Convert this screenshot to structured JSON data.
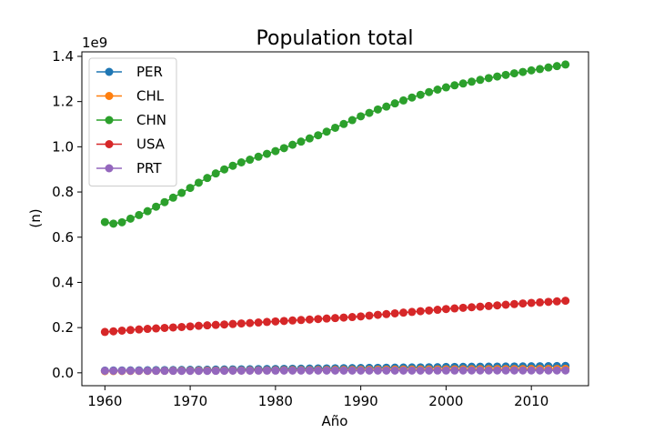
{
  "chart_data": {
    "type": "line",
    "title": "Population total",
    "xlabel": "Año",
    "ylabel": "(n)",
    "offset_text": "1e9",
    "xlim": [
      1957.3,
      2016.7
    ],
    "ylim": [
      -0.057,
      1.42
    ],
    "x_ticks": [
      1960,
      1970,
      1980,
      1990,
      2000,
      2010
    ],
    "x_tick_labels": [
      "1960",
      "1970",
      "1980",
      "1990",
      "2000",
      "2010"
    ],
    "y_ticks": [
      0.0,
      0.2,
      0.4,
      0.6,
      0.8,
      1.0,
      1.2,
      1.4
    ],
    "y_tick_labels": [
      "0.0",
      "0.2",
      "0.4",
      "0.6",
      "0.8",
      "1.0",
      "1.2",
      "1.4"
    ],
    "grid": false,
    "legend_position": "top-left",
    "x": [
      1960,
      1961,
      1962,
      1963,
      1964,
      1965,
      1966,
      1967,
      1968,
      1969,
      1970,
      1971,
      1972,
      1973,
      1974,
      1975,
      1976,
      1977,
      1978,
      1979,
      1980,
      1981,
      1982,
      1983,
      1984,
      1985,
      1986,
      1987,
      1988,
      1989,
      1990,
      1991,
      1992,
      1993,
      1994,
      1995,
      1996,
      1997,
      1998,
      1999,
      2000,
      2001,
      2002,
      2003,
      2004,
      2005,
      2006,
      2007,
      2008,
      2009,
      2010,
      2011,
      2012,
      2013,
      2014
    ],
    "series": [
      {
        "name": "PER",
        "color": "#1f77b4",
        "values": [
          0.0099,
          0.0102,
          0.0105,
          0.0108,
          0.0111,
          0.0114,
          0.0117,
          0.0121,
          0.0124,
          0.0128,
          0.0132,
          0.0135,
          0.0139,
          0.0143,
          0.0147,
          0.0151,
          0.0155,
          0.0159,
          0.0163,
          0.0167,
          0.0171,
          0.0176,
          0.018,
          0.0184,
          0.0188,
          0.0193,
          0.0197,
          0.0201,
          0.0205,
          0.0209,
          0.0214,
          0.0218,
          0.0222,
          0.0226,
          0.023,
          0.0234,
          0.0238,
          0.0242,
          0.0246,
          0.025,
          0.0259,
          0.0262,
          0.0265,
          0.0268,
          0.0271,
          0.0274,
          0.0277,
          0.0279,
          0.0282,
          0.0285,
          0.0288,
          0.0291,
          0.0295,
          0.0299,
          0.0304
        ]
      },
      {
        "name": "CHL",
        "color": "#ff7f0e",
        "values": [
          0.0076,
          0.0078,
          0.008,
          0.0082,
          0.0084,
          0.0086,
          0.0088,
          0.009,
          0.0092,
          0.0094,
          0.0096,
          0.0098,
          0.01,
          0.0101,
          0.0103,
          0.0105,
          0.0106,
          0.0108,
          0.011,
          0.0111,
          0.0113,
          0.0115,
          0.0117,
          0.0119,
          0.0121,
          0.0123,
          0.0125,
          0.0127,
          0.0129,
          0.0131,
          0.0133,
          0.0136,
          0.0138,
          0.014,
          0.0142,
          0.0144,
          0.0146,
          0.0148,
          0.0149,
          0.0151,
          0.0153,
          0.0155,
          0.0156,
          0.0158,
          0.0159,
          0.016,
          0.0162,
          0.0163,
          0.0165,
          0.0166,
          0.0167,
          0.0169,
          0.017,
          0.0172,
          0.0174
        ]
      },
      {
        "name": "CHN",
        "color": "#2ca02c",
        "values": [
          0.667,
          0.66,
          0.666,
          0.682,
          0.698,
          0.715,
          0.735,
          0.755,
          0.775,
          0.796,
          0.818,
          0.841,
          0.862,
          0.882,
          0.9,
          0.916,
          0.931,
          0.943,
          0.956,
          0.969,
          0.981,
          0.994,
          1.009,
          1.023,
          1.037,
          1.051,
          1.067,
          1.084,
          1.101,
          1.118,
          1.135,
          1.15,
          1.165,
          1.178,
          1.192,
          1.205,
          1.218,
          1.23,
          1.242,
          1.253,
          1.263,
          1.272,
          1.28,
          1.288,
          1.296,
          1.304,
          1.311,
          1.318,
          1.325,
          1.331,
          1.338,
          1.344,
          1.351,
          1.357,
          1.364
        ]
      },
      {
        "name": "USA",
        "color": "#d62728",
        "values": [
          0.1807,
          0.1837,
          0.1867,
          0.1894,
          0.1919,
          0.1943,
          0.1965,
          0.1986,
          0.2007,
          0.2027,
          0.2052,
          0.2079,
          0.2099,
          0.2119,
          0.2139,
          0.216,
          0.2182,
          0.2202,
          0.2226,
          0.2251,
          0.2273,
          0.2293,
          0.2316,
          0.2337,
          0.2358,
          0.2379,
          0.2402,
          0.2422,
          0.2444,
          0.2468,
          0.2496,
          0.253,
          0.2565,
          0.2599,
          0.2632,
          0.2663,
          0.2694,
          0.2726,
          0.2756,
          0.279,
          0.2822,
          0.285,
          0.2878,
          0.2901,
          0.2928,
          0.2955,
          0.2984,
          0.3012,
          0.3041,
          0.3068,
          0.3093,
          0.3115,
          0.3139,
          0.3161,
          0.3188
        ]
      },
      {
        "name": "PRT",
        "color": "#9467bd",
        "values": [
          0.0089,
          0.0089,
          0.009,
          0.009,
          0.009,
          0.0089,
          0.0088,
          0.0087,
          0.0087,
          0.0086,
          0.0086,
          0.0086,
          0.0086,
          0.0087,
          0.0091,
          0.0094,
          0.0095,
          0.0096,
          0.0097,
          0.0098,
          0.0098,
          0.0099,
          0.0099,
          0.01,
          0.01,
          0.01,
          0.01,
          0.01,
          0.01,
          0.0099,
          0.0099,
          0.0099,
          0.01,
          0.01,
          0.01,
          0.01,
          0.0101,
          0.0101,
          0.0101,
          0.0102,
          0.0103,
          0.0103,
          0.0104,
          0.0104,
          0.0105,
          0.0105,
          0.0105,
          0.0105,
          0.0106,
          0.0106,
          0.0106,
          0.0106,
          0.0105,
          0.0105,
          0.0104
        ]
      }
    ]
  }
}
